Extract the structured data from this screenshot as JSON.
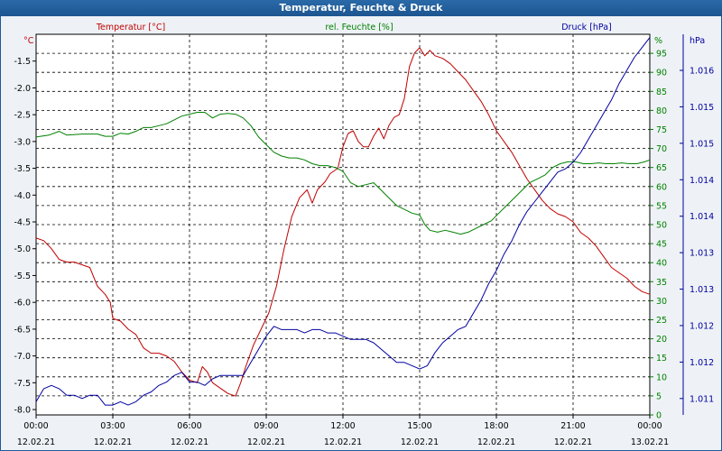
{
  "chart_data": {
    "type": "line",
    "title": "Temperatur, Feuchte & Druck",
    "x_ticks": [
      {
        "time": "00:00",
        "date": "12.02.21"
      },
      {
        "time": "03:00",
        "date": "12.02.21"
      },
      {
        "time": "06:00",
        "date": "12.02.21"
      },
      {
        "time": "09:00",
        "date": "12.02.21"
      },
      {
        "time": "12:00",
        "date": "12.02.21"
      },
      {
        "time": "15:00",
        "date": "12.02.21"
      },
      {
        "time": "18:00",
        "date": "12.02.21"
      },
      {
        "time": "21:00",
        "date": "12.02.21"
      },
      {
        "time": "00:00",
        "date": "13.02.21"
      }
    ],
    "xlim_hours": [
      0,
      24
    ],
    "axes": {
      "temperature": {
        "label": "Temperatur [°C]",
        "unit": "°C",
        "color": "#c00000",
        "position": "left",
        "ylim": [
          -8.1,
          -1.0
        ],
        "ticks": [
          "-1.5",
          "-2.0",
          "-2.5",
          "-3.0",
          "-3.5",
          "-4.0",
          "-4.5",
          "-5.0",
          "-5.5",
          "-6.0",
          "-6.5",
          "-7.0",
          "-7.5",
          "-8.0"
        ]
      },
      "humidity": {
        "label": "rel. Feuchte [%]",
        "unit": "%",
        "color": "#008000",
        "position": "right-inner",
        "ylim": [
          0,
          100
        ],
        "ticks": [
          "0",
          "5",
          "10",
          "15",
          "20",
          "25",
          "30",
          "35",
          "40",
          "45",
          "50",
          "55",
          "60",
          "65",
          "70",
          "75",
          "80",
          "85",
          "90",
          "95"
        ]
      },
      "pressure": {
        "label": "Druck [hPa]",
        "unit": "hPa",
        "color": "#0000a0",
        "position": "right-outer",
        "ylim": [
          1010.75,
          1016.55
        ],
        "ticks": [
          "1.011",
          "1.012",
          "1.012",
          "1.013",
          "1.013",
          "1.014",
          "1.014",
          "1.015",
          "1.015",
          "1.016"
        ]
      }
    },
    "grid": true,
    "series": [
      {
        "name": "Temperatur [°C]",
        "axis": "temperature",
        "color": "#c00000",
        "points": [
          [
            0,
            -4.8
          ],
          [
            0.3,
            -4.85
          ],
          [
            0.6,
            -5.0
          ],
          [
            0.9,
            -5.2
          ],
          [
            1.2,
            -5.25
          ],
          [
            1.5,
            -5.25
          ],
          [
            1.8,
            -5.3
          ],
          [
            2.1,
            -5.35
          ],
          [
            2.4,
            -5.7
          ],
          [
            2.7,
            -5.85
          ],
          [
            2.9,
            -6.0
          ],
          [
            3.0,
            -6.3
          ],
          [
            3.3,
            -6.35
          ],
          [
            3.6,
            -6.5
          ],
          [
            3.9,
            -6.6
          ],
          [
            4.2,
            -6.85
          ],
          [
            4.5,
            -6.95
          ],
          [
            4.8,
            -6.95
          ],
          [
            5.1,
            -7.0
          ],
          [
            5.4,
            -7.1
          ],
          [
            5.7,
            -7.3
          ],
          [
            6.0,
            -7.45
          ],
          [
            6.3,
            -7.5
          ],
          [
            6.5,
            -7.2
          ],
          [
            6.7,
            -7.3
          ],
          [
            6.9,
            -7.5
          ],
          [
            7.2,
            -7.6
          ],
          [
            7.5,
            -7.7
          ],
          [
            7.8,
            -7.75
          ],
          [
            8.0,
            -7.5
          ],
          [
            8.2,
            -7.2
          ],
          [
            8.5,
            -6.8
          ],
          [
            8.8,
            -6.5
          ],
          [
            9.1,
            -6.2
          ],
          [
            9.4,
            -5.7
          ],
          [
            9.7,
            -5.0
          ],
          [
            10.0,
            -4.4
          ],
          [
            10.3,
            -4.05
          ],
          [
            10.6,
            -3.9
          ],
          [
            10.8,
            -4.15
          ],
          [
            11.0,
            -3.9
          ],
          [
            11.3,
            -3.75
          ],
          [
            11.5,
            -3.6
          ],
          [
            11.8,
            -3.5
          ],
          [
            12.0,
            -3.1
          ],
          [
            12.2,
            -2.85
          ],
          [
            12.4,
            -2.8
          ],
          [
            12.6,
            -3.0
          ],
          [
            12.8,
            -3.1
          ],
          [
            13.0,
            -3.1
          ],
          [
            13.2,
            -2.9
          ],
          [
            13.4,
            -2.75
          ],
          [
            13.6,
            -2.95
          ],
          [
            13.8,
            -2.7
          ],
          [
            14.0,
            -2.55
          ],
          [
            14.2,
            -2.5
          ],
          [
            14.4,
            -2.2
          ],
          [
            14.6,
            -1.6
          ],
          [
            14.8,
            -1.35
          ],
          [
            15.0,
            -1.25
          ],
          [
            15.2,
            -1.4
          ],
          [
            15.4,
            -1.3
          ],
          [
            15.6,
            -1.4
          ],
          [
            15.9,
            -1.45
          ],
          [
            16.2,
            -1.55
          ],
          [
            16.5,
            -1.7
          ],
          [
            16.8,
            -1.85
          ],
          [
            17.1,
            -2.05
          ],
          [
            17.4,
            -2.25
          ],
          [
            17.7,
            -2.5
          ],
          [
            18.0,
            -2.8
          ],
          [
            18.3,
            -3.0
          ],
          [
            18.6,
            -3.2
          ],
          [
            18.9,
            -3.45
          ],
          [
            19.2,
            -3.7
          ],
          [
            19.5,
            -3.9
          ],
          [
            19.8,
            -4.1
          ],
          [
            20.1,
            -4.25
          ],
          [
            20.4,
            -4.35
          ],
          [
            20.7,
            -4.4
          ],
          [
            21.0,
            -4.5
          ],
          [
            21.3,
            -4.7
          ],
          [
            21.6,
            -4.8
          ],
          [
            21.9,
            -4.95
          ],
          [
            22.2,
            -5.15
          ],
          [
            22.5,
            -5.35
          ],
          [
            22.8,
            -5.45
          ],
          [
            23.1,
            -5.55
          ],
          [
            23.4,
            -5.7
          ],
          [
            23.7,
            -5.8
          ],
          [
            24.0,
            -5.85
          ]
        ]
      },
      {
        "name": "rel. Feuchte [%]",
        "axis": "humidity",
        "color": "#008000",
        "points": [
          [
            0,
            73
          ],
          [
            0.5,
            73.5
          ],
          [
            0.9,
            74.5
          ],
          [
            1.2,
            73.5
          ],
          [
            1.8,
            73.8
          ],
          [
            2.4,
            73.8
          ],
          [
            2.7,
            73.2
          ],
          [
            3.0,
            73.2
          ],
          [
            3.3,
            74
          ],
          [
            3.6,
            73.8
          ],
          [
            3.9,
            74.5
          ],
          [
            4.2,
            75.5
          ],
          [
            4.5,
            75.5
          ],
          [
            4.8,
            76
          ],
          [
            5.1,
            76.5
          ],
          [
            5.4,
            77.5
          ],
          [
            5.7,
            78.5
          ],
          [
            6.0,
            79
          ],
          [
            6.3,
            79.5
          ],
          [
            6.6,
            79.5
          ],
          [
            6.9,
            78
          ],
          [
            7.2,
            79
          ],
          [
            7.5,
            79.2
          ],
          [
            7.8,
            79
          ],
          [
            8.1,
            78
          ],
          [
            8.4,
            76
          ],
          [
            8.7,
            73
          ],
          [
            9.0,
            71
          ],
          [
            9.3,
            69
          ],
          [
            9.6,
            68
          ],
          [
            9.9,
            67.5
          ],
          [
            10.2,
            67.5
          ],
          [
            10.5,
            67
          ],
          [
            10.8,
            66
          ],
          [
            11.1,
            65.5
          ],
          [
            11.4,
            65.5
          ],
          [
            11.7,
            65
          ],
          [
            12.0,
            64
          ],
          [
            12.3,
            61
          ],
          [
            12.6,
            60
          ],
          [
            12.9,
            60.5
          ],
          [
            13.2,
            61
          ],
          [
            13.5,
            59
          ],
          [
            13.8,
            57
          ],
          [
            14.1,
            55
          ],
          [
            14.4,
            54
          ],
          [
            14.7,
            53
          ],
          [
            15.0,
            52.5
          ],
          [
            15.2,
            50
          ],
          [
            15.4,
            48.5
          ],
          [
            15.7,
            48
          ],
          [
            16.0,
            48.5
          ],
          [
            16.3,
            48
          ],
          [
            16.6,
            47.5
          ],
          [
            16.9,
            48
          ],
          [
            17.2,
            49
          ],
          [
            17.5,
            50
          ],
          [
            17.8,
            51
          ],
          [
            18.1,
            53
          ],
          [
            18.4,
            55
          ],
          [
            18.7,
            57
          ],
          [
            19.0,
            59
          ],
          [
            19.3,
            61
          ],
          [
            19.6,
            62
          ],
          [
            19.9,
            63
          ],
          [
            20.2,
            65
          ],
          [
            20.5,
            66
          ],
          [
            20.8,
            66.5
          ],
          [
            21.1,
            66.5
          ],
          [
            21.4,
            66
          ],
          [
            21.7,
            66
          ],
          [
            22.0,
            66.2
          ],
          [
            22.3,
            66
          ],
          [
            22.6,
            66
          ],
          [
            22.9,
            66.2
          ],
          [
            23.2,
            66
          ],
          [
            23.5,
            66
          ],
          [
            23.8,
            66.5
          ],
          [
            24.0,
            67
          ]
        ]
      },
      {
        "name": "Druck [hPa]",
        "axis": "pressure",
        "color": "#0000a0",
        "points": [
          [
            0,
            1010.95
          ],
          [
            0.3,
            1011.15
          ],
          [
            0.6,
            1011.2
          ],
          [
            0.9,
            1011.15
          ],
          [
            1.2,
            1011.05
          ],
          [
            1.5,
            1011.05
          ],
          [
            1.8,
            1011.0
          ],
          [
            2.1,
            1011.05
          ],
          [
            2.4,
            1011.05
          ],
          [
            2.7,
            1010.9
          ],
          [
            3.0,
            1010.9
          ],
          [
            3.3,
            1010.95
          ],
          [
            3.6,
            1010.9
          ],
          [
            3.9,
            1010.95
          ],
          [
            4.2,
            1011.05
          ],
          [
            4.5,
            1011.1
          ],
          [
            4.8,
            1011.2
          ],
          [
            5.1,
            1011.25
          ],
          [
            5.4,
            1011.35
          ],
          [
            5.7,
            1011.4
          ],
          [
            6.0,
            1011.25
          ],
          [
            6.3,
            1011.25
          ],
          [
            6.6,
            1011.2
          ],
          [
            6.9,
            1011.3
          ],
          [
            7.2,
            1011.35
          ],
          [
            7.5,
            1011.35
          ],
          [
            7.8,
            1011.35
          ],
          [
            8.1,
            1011.35
          ],
          [
            8.4,
            1011.55
          ],
          [
            8.7,
            1011.75
          ],
          [
            9.0,
            1011.95
          ],
          [
            9.3,
            1012.1
          ],
          [
            9.6,
            1012.05
          ],
          [
            9.9,
            1012.05
          ],
          [
            10.2,
            1012.05
          ],
          [
            10.5,
            1012.0
          ],
          [
            10.8,
            1012.05
          ],
          [
            11.1,
            1012.05
          ],
          [
            11.4,
            1012.0
          ],
          [
            11.7,
            1012.0
          ],
          [
            12.0,
            1011.95
          ],
          [
            12.3,
            1011.9
          ],
          [
            12.6,
            1011.9
          ],
          [
            12.9,
            1011.9
          ],
          [
            13.2,
            1011.85
          ],
          [
            13.5,
            1011.75
          ],
          [
            13.8,
            1011.65
          ],
          [
            14.1,
            1011.55
          ],
          [
            14.4,
            1011.55
          ],
          [
            14.7,
            1011.5
          ],
          [
            15.0,
            1011.45
          ],
          [
            15.3,
            1011.5
          ],
          [
            15.6,
            1011.7
          ],
          [
            15.9,
            1011.85
          ],
          [
            16.2,
            1011.95
          ],
          [
            16.5,
            1012.05
          ],
          [
            16.8,
            1012.1
          ],
          [
            17.1,
            1012.3
          ],
          [
            17.4,
            1012.5
          ],
          [
            17.7,
            1012.75
          ],
          [
            18.0,
            1012.95
          ],
          [
            18.3,
            1013.2
          ],
          [
            18.6,
            1013.4
          ],
          [
            18.9,
            1013.65
          ],
          [
            19.2,
            1013.85
          ],
          [
            19.5,
            1014.0
          ],
          [
            19.8,
            1014.15
          ],
          [
            20.1,
            1014.3
          ],
          [
            20.4,
            1014.45
          ],
          [
            20.7,
            1014.5
          ],
          [
            21.0,
            1014.6
          ],
          [
            21.3,
            1014.75
          ],
          [
            21.6,
            1014.95
          ],
          [
            21.9,
            1015.15
          ],
          [
            22.2,
            1015.35
          ],
          [
            22.5,
            1015.55
          ],
          [
            22.8,
            1015.8
          ],
          [
            23.1,
            1016.0
          ],
          [
            23.4,
            1016.2
          ],
          [
            23.7,
            1016.35
          ],
          [
            24.0,
            1016.5
          ]
        ]
      }
    ]
  }
}
